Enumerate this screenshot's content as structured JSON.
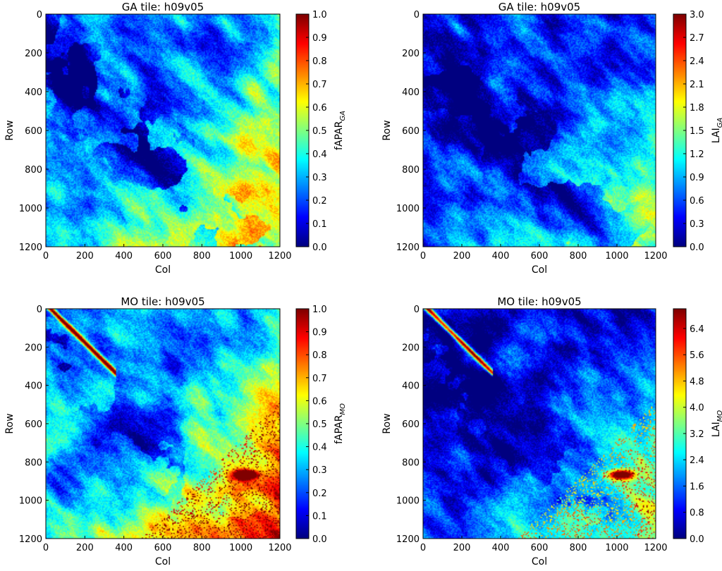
{
  "chart_data": [
    {
      "type": "heatmap",
      "title": "GA tile: h09v05",
      "xlabel": "Col",
      "ylabel": "Row",
      "x_ticks": [
        0,
        200,
        400,
        600,
        800,
        1000,
        1200
      ],
      "y_ticks": [
        0,
        200,
        400,
        600,
        800,
        1000,
        1200
      ],
      "xlim": [
        0,
        1200
      ],
      "ylim": [
        1200,
        0
      ],
      "colorbar": {
        "label": "fAPAR",
        "label_sub": "GA",
        "min": 0.0,
        "max": 1.0,
        "ticks": [
          "0.0",
          "0.1",
          "0.2",
          "0.3",
          "0.4",
          "0.5",
          "0.6",
          "0.7",
          "0.8",
          "0.9",
          "1.0"
        ]
      },
      "colormap": "jet",
      "pattern": {
        "base": 0.28,
        "gradient": 0.52,
        "dark_strength": 0.7,
        "bright_spots": 0.0
      }
    },
    {
      "type": "heatmap",
      "title": "GA tile: h09v05",
      "xlabel": "Col",
      "ylabel": "Row",
      "x_ticks": [
        0,
        200,
        400,
        600,
        800,
        1000,
        1200
      ],
      "y_ticks": [
        0,
        200,
        400,
        600,
        800,
        1000,
        1200
      ],
      "xlim": [
        0,
        1200
      ],
      "ylim": [
        1200,
        0
      ],
      "colorbar": {
        "label": "LAI",
        "label_sub": "GA",
        "min": 0.0,
        "max": 3.0,
        "ticks": [
          "0.0",
          "0.3",
          "0.6",
          "0.9",
          "1.2",
          "1.5",
          "1.8",
          "2.1",
          "2.4",
          "2.7",
          "3.0"
        ]
      },
      "colormap": "jet",
      "pattern": {
        "base": 0.16,
        "gradient": 0.42,
        "dark_strength": 0.6,
        "bright_spots": 0.0
      }
    },
    {
      "type": "heatmap",
      "title": "MO tile: h09v05",
      "xlabel": "Col",
      "ylabel": "Row",
      "x_ticks": [
        0,
        200,
        400,
        600,
        800,
        1000,
        1200
      ],
      "y_ticks": [
        0,
        200,
        400,
        600,
        800,
        1000,
        1200
      ],
      "xlim": [
        0,
        1200
      ],
      "ylim": [
        1200,
        0
      ],
      "colorbar": {
        "label": "fAPAR",
        "label_sub": "MO",
        "min": 0.0,
        "max": 1.0,
        "ticks": [
          "0.0",
          "0.1",
          "0.2",
          "0.3",
          "0.4",
          "0.5",
          "0.6",
          "0.7",
          "0.8",
          "0.9",
          "1.0"
        ]
      },
      "colormap": "jet",
      "pattern": {
        "base": 0.3,
        "gradient": 0.6,
        "dark_strength": 0.35,
        "bright_spots": 1.0
      }
    },
    {
      "type": "heatmap",
      "title": "MO tile: h09v05",
      "xlabel": "Col",
      "ylabel": "Row",
      "x_ticks": [
        0,
        200,
        400,
        600,
        800,
        1000,
        1200
      ],
      "y_ticks": [
        0,
        200,
        400,
        600,
        800,
        1000,
        1200
      ],
      "xlim": [
        0,
        1200
      ],
      "ylim": [
        1200,
        0
      ],
      "colorbar": {
        "label": "LAI",
        "label_sub": "MO",
        "min": 0.0,
        "max": 7.0,
        "ticks": [
          "0.0",
          "0.8",
          "1.6",
          "2.4",
          "3.2",
          "4.0",
          "4.8",
          "5.6",
          "6.4"
        ]
      },
      "colormap": "jet",
      "pattern": {
        "base": 0.14,
        "gradient": 0.45,
        "dark_strength": 0.3,
        "bright_spots": 1.0
      }
    }
  ]
}
